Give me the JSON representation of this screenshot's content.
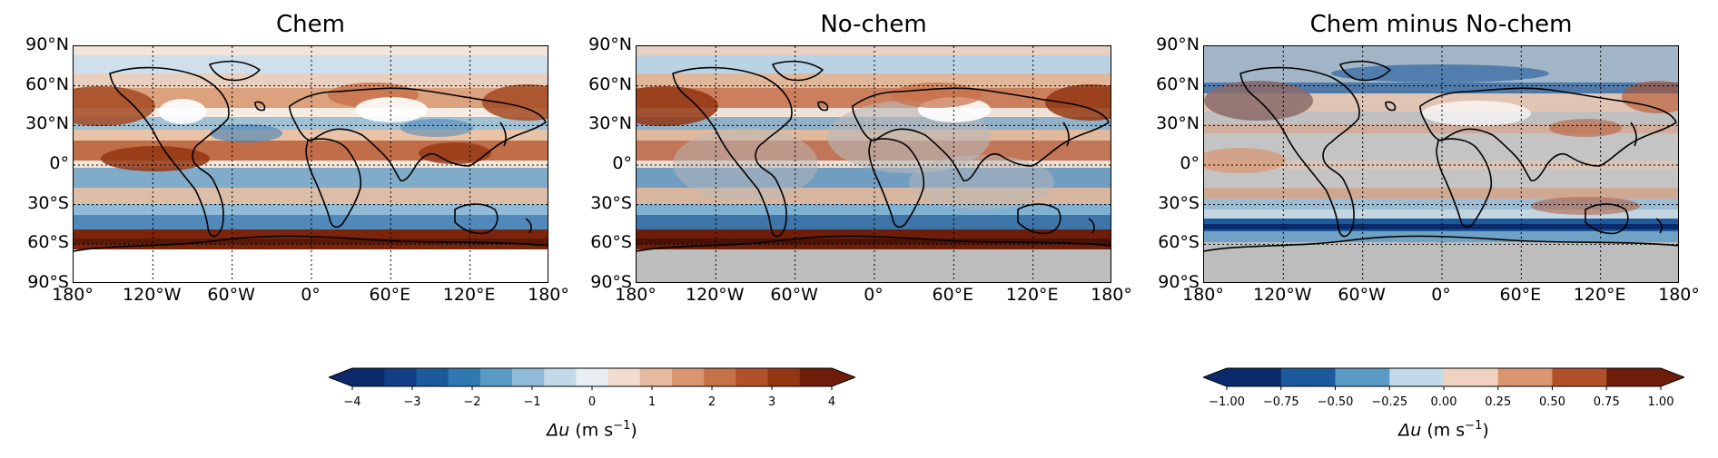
{
  "panels": [
    {
      "id": "chem",
      "title": "Chem"
    },
    {
      "id": "nochem",
      "title": "No-chem"
    },
    {
      "id": "diff",
      "title": "Chem minus No-chem"
    }
  ],
  "lat_ticks": [
    "90°N",
    "60°N",
    "30°N",
    "0°",
    "30°S",
    "60°S",
    "90°S"
  ],
  "lon_ticks": [
    "180°",
    "120°W",
    "60°W",
    "0°",
    "60°E",
    "120°E",
    "180°"
  ],
  "colorbar_left": {
    "ticks": [
      "−4",
      "−3",
      "−2",
      "−1",
      "0",
      "1",
      "2",
      "3",
      "4"
    ],
    "label_main": "Δu",
    "label_units": "(m s",
    "label_exp": "−1",
    "label_close": ")",
    "colors": [
      "#0b2a6b",
      "#123f86",
      "#1d5a9c",
      "#2f78b0",
      "#5a9ac4",
      "#8fbbd8",
      "#c2d9e8",
      "#e8eef2",
      "#f1dcd0",
      "#e7b99f",
      "#d9966f",
      "#c7714a",
      "#b1502a",
      "#933613",
      "#6e1e08"
    ]
  },
  "colorbar_right": {
    "ticks": [
      "−1.00",
      "−0.75",
      "−0.50",
      "−0.25",
      "0.00",
      "0.25",
      "0.50",
      "0.75",
      "1.00"
    ],
    "label_main": "Δu",
    "label_units": "(m s",
    "label_exp": "−1",
    "label_close": ")",
    "colors": [
      "#0b2a6b",
      "#1d5a9c",
      "#5a9ac4",
      "#c2d9e8",
      "#efd2c0",
      "#d9966f",
      "#b1502a",
      "#6e1e08"
    ]
  }
}
